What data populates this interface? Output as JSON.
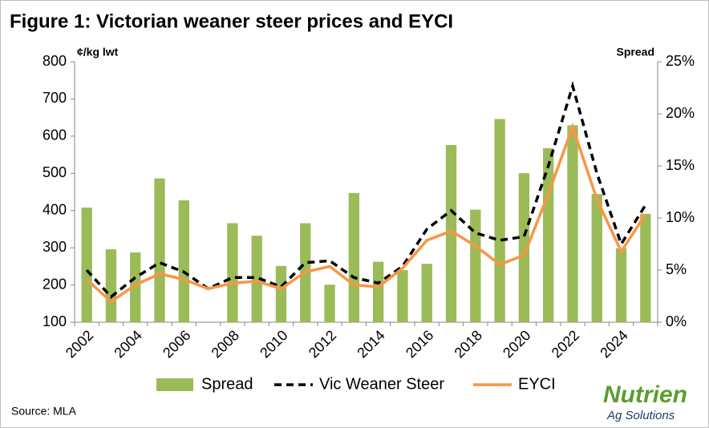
{
  "chart_data": {
    "type": "bar-line",
    "title": "Figure 1: Victorian weaner steer prices and  EYCI",
    "y_label": "¢/kg lwt",
    "y2_label": "Spread",
    "source": "Source: MLA",
    "logo": {
      "name": "Nutrien",
      "tagline": "Ag Solutions"
    },
    "categories": [
      "2002",
      null,
      "2004",
      null,
      "2006",
      null,
      "2008",
      null,
      "2010",
      null,
      "2012",
      null,
      "2014",
      null,
      "2016",
      null,
      "2018",
      null,
      "2020",
      null,
      "2022",
      null,
      "2024",
      null
    ],
    "series": [
      {
        "name": "Spread",
        "type": "bar",
        "axis": "y2",
        "color": "#9bbb59",
        "values": [
          11.0,
          7.0,
          6.7,
          13.8,
          11.7,
          0,
          9.5,
          8.3,
          5.4,
          9.5,
          3.6,
          12.4,
          5.8,
          5.0,
          5.6,
          17.0,
          10.8,
          19.5,
          14.3,
          16.7,
          18.9,
          12.3,
          7.1,
          10.4
        ]
      },
      {
        "name": "Vic Weaner Steer",
        "type": "line",
        "linestyle": "dashed",
        "color": "#000000",
        "values": [
          240,
          168,
          220,
          260,
          235,
          190,
          220,
          220,
          195,
          260,
          265,
          220,
          205,
          250,
          350,
          400,
          340,
          320,
          330,
          520,
          735,
          500,
          310,
          415
        ]
      },
      {
        "name": "EYCI",
        "type": "line",
        "linestyle": "solid",
        "color": "#f79646",
        "values": [
          215,
          155,
          200,
          230,
          215,
          190,
          205,
          210,
          190,
          235,
          250,
          200,
          195,
          245,
          320,
          345,
          305,
          255,
          280,
          445,
          625,
          430,
          290,
          390
        ]
      }
    ],
    "ylim": [
      100,
      800
    ],
    "yticks": [
      100,
      200,
      300,
      400,
      500,
      600,
      700,
      800
    ],
    "y2lim": [
      0,
      25
    ],
    "y2ticks": [
      {
        "value": 0,
        "label": "0%"
      },
      {
        "value": 5,
        "label": "5%"
      },
      {
        "value": 10,
        "label": "10%"
      },
      {
        "value": 15,
        "label": "15%"
      },
      {
        "value": 20,
        "label": "20%"
      },
      {
        "value": 25,
        "label": "25%"
      }
    ],
    "grid": false,
    "legend": "bottom"
  }
}
